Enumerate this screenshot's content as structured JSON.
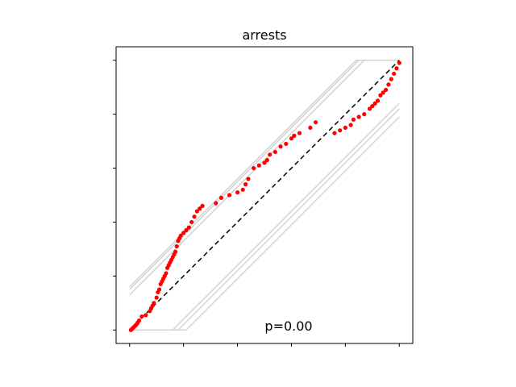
{
  "chart_data": {
    "type": "scatter",
    "title": "arrests",
    "annotation": "p=0.00",
    "xlabel": "",
    "ylabel": "",
    "xlim": [
      -0.05,
      1.05
    ],
    "ylim": [
      -0.05,
      1.05
    ],
    "x_ticks": [
      0,
      0.2,
      0.4,
      0.6,
      0.8,
      1.0
    ],
    "y_ticks": [
      0,
      0.2,
      0.4,
      0.6,
      0.8,
      1.0
    ],
    "tick_labels_shown": false,
    "grid": false,
    "reference_line": {
      "from": [
        0,
        0
      ],
      "to": [
        1,
        1
      ],
      "color": "#000000",
      "style": "dashed"
    },
    "bands": {
      "color": "#d3d3d3",
      "upper_offsets": [
        0.13,
        0.15,
        0.16
      ],
      "lower_offsets": [
        0.16,
        0.18,
        0.21
      ]
    },
    "series": [
      {
        "color": "#ff0000",
        "points": [
          [
            0.005,
            0.0
          ],
          [
            0.01,
            0.005
          ],
          [
            0.015,
            0.01
          ],
          [
            0.02,
            0.015
          ],
          [
            0.025,
            0.02
          ],
          [
            0.03,
            0.027
          ],
          [
            0.035,
            0.035
          ],
          [
            0.045,
            0.05
          ],
          [
            0.06,
            0.055
          ],
          [
            0.075,
            0.07
          ],
          [
            0.08,
            0.08
          ],
          [
            0.085,
            0.09
          ],
          [
            0.09,
            0.1
          ],
          [
            0.1,
            0.12
          ],
          [
            0.105,
            0.14
          ],
          [
            0.11,
            0.15
          ],
          [
            0.115,
            0.17
          ],
          [
            0.12,
            0.18
          ],
          [
            0.125,
            0.19
          ],
          [
            0.13,
            0.2
          ],
          [
            0.135,
            0.21
          ],
          [
            0.14,
            0.23
          ],
          [
            0.145,
            0.24
          ],
          [
            0.15,
            0.25
          ],
          [
            0.155,
            0.26
          ],
          [
            0.16,
            0.27
          ],
          [
            0.165,
            0.28
          ],
          [
            0.17,
            0.29
          ],
          [
            0.175,
            0.31
          ],
          [
            0.18,
            0.33
          ],
          [
            0.185,
            0.34
          ],
          [
            0.19,
            0.35
          ],
          [
            0.2,
            0.36
          ],
          [
            0.21,
            0.37
          ],
          [
            0.22,
            0.38
          ],
          [
            0.23,
            0.4
          ],
          [
            0.24,
            0.42
          ],
          [
            0.25,
            0.44
          ],
          [
            0.26,
            0.45
          ],
          [
            0.27,
            0.46
          ],
          [
            0.32,
            0.47
          ],
          [
            0.34,
            0.49
          ],
          [
            0.37,
            0.5
          ],
          [
            0.4,
            0.51
          ],
          [
            0.42,
            0.52
          ],
          [
            0.43,
            0.54
          ],
          [
            0.44,
            0.56
          ],
          [
            0.46,
            0.6
          ],
          [
            0.48,
            0.61
          ],
          [
            0.5,
            0.62
          ],
          [
            0.51,
            0.63
          ],
          [
            0.52,
            0.65
          ],
          [
            0.54,
            0.66
          ],
          [
            0.56,
            0.68
          ],
          [
            0.58,
            0.69
          ],
          [
            0.6,
            0.71
          ],
          [
            0.61,
            0.72
          ],
          [
            0.63,
            0.73
          ],
          [
            0.67,
            0.75
          ],
          [
            0.69,
            0.77
          ],
          [
            0.76,
            0.73
          ],
          [
            0.78,
            0.74
          ],
          [
            0.8,
            0.75
          ],
          [
            0.82,
            0.76
          ],
          [
            0.83,
            0.78
          ],
          [
            0.85,
            0.79
          ],
          [
            0.87,
            0.8
          ],
          [
            0.89,
            0.82
          ],
          [
            0.9,
            0.83
          ],
          [
            0.91,
            0.84
          ],
          [
            0.92,
            0.85
          ],
          [
            0.93,
            0.87
          ],
          [
            0.94,
            0.88
          ],
          [
            0.95,
            0.89
          ],
          [
            0.96,
            0.91
          ],
          [
            0.97,
            0.93
          ],
          [
            0.98,
            0.95
          ],
          [
            0.99,
            0.97
          ],
          [
            1.0,
            0.99
          ]
        ]
      }
    ]
  }
}
